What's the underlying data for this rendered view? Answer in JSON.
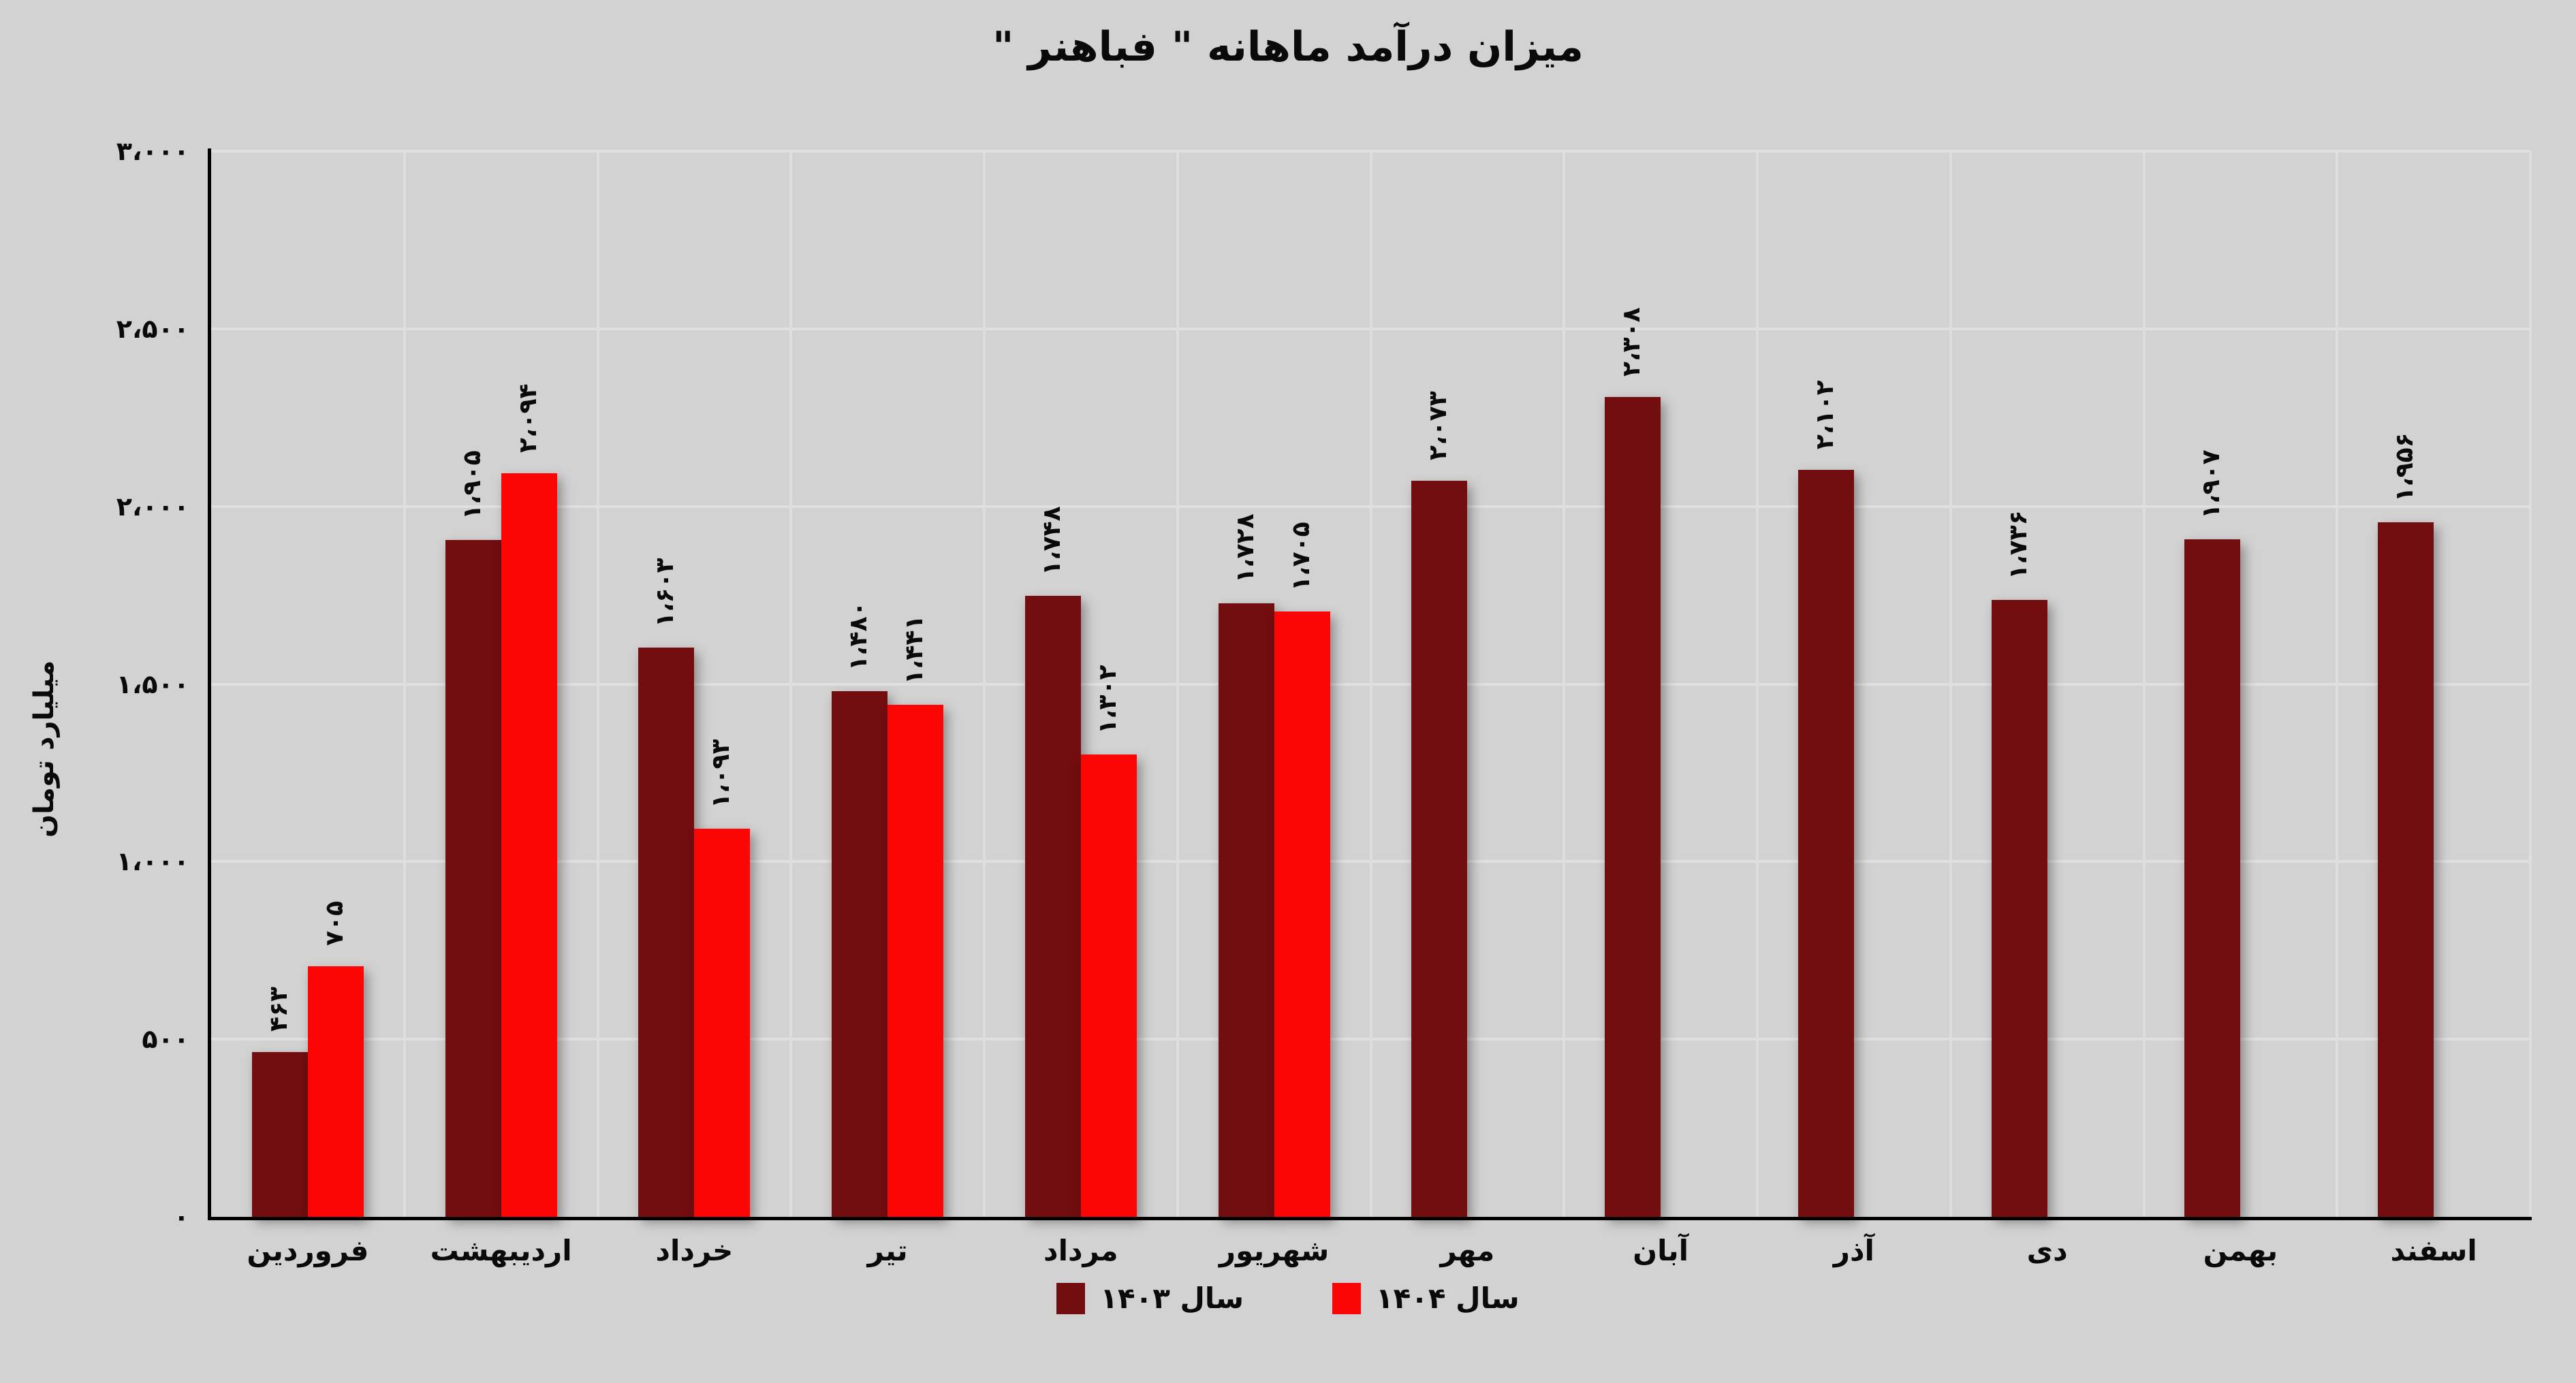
{
  "title": "میزان درآمد ماهانه \" فباهنر \"",
  "colors": {
    "background": "#d2d2d2",
    "gridline": "#e0e0e0",
    "axis": "#000000",
    "text": "#0a0a0a",
    "series_1403": "#720d10",
    "series_1404": "#fb0505"
  },
  "chart_data": {
    "type": "bar",
    "title": "میزان درآمد ماهانه \" فباهنر \"",
    "ylabel": "میلیارد تومان",
    "xlabel": "",
    "ylim": [
      0,
      3000
    ],
    "ytick_step": 500,
    "grid": true,
    "legend_position": "bottom",
    "categories": [
      "فروردین",
      "اردیبهشت",
      "خرداد",
      "تیر",
      "مرداد",
      "شهریور",
      "مهر",
      "آبان",
      "آذر",
      "دی",
      "بهمن",
      "اسفند"
    ],
    "yticks": [
      {
        "value": 0,
        "label": "۰"
      },
      {
        "value": 500,
        "label": "۵۰۰"
      },
      {
        "value": 1000,
        "label": "۱،۰۰۰"
      },
      {
        "value": 1500,
        "label": "۱،۵۰۰"
      },
      {
        "value": 2000,
        "label": "۲،۰۰۰"
      },
      {
        "value": 2500,
        "label": "۲،۵۰۰"
      },
      {
        "value": 3000,
        "label": "۳،۰۰۰"
      }
    ],
    "series": [
      {
        "name": "سال ۱۴۰۳",
        "color": "#720d10",
        "values": [
          463,
          1905,
          1603,
          1480,
          1748,
          1728,
          2073,
          2308,
          2102,
          1736,
          1907,
          1956
        ],
        "labels": [
          "۴۶۳",
          "۱،۹۰۵",
          "۱،۶۰۳",
          "۱،۴۸۰",
          "۱،۷۴۸",
          "۱،۷۲۸",
          "۲،۰۷۳",
          "۲،۳۰۸",
          "۲،۱۰۲",
          "۱،۷۳۶",
          "۱،۹۰۷",
          "۱،۹۵۶"
        ]
      },
      {
        "name": "سال ۱۴۰۴",
        "color": "#fb0505",
        "values": [
          705,
          2094,
          1093,
          1441,
          1302,
          1705,
          null,
          null,
          null,
          null,
          null,
          null
        ],
        "labels": [
          "۷۰۵",
          "۲،۰۹۴",
          "۱،۰۹۳",
          "۱،۴۴۱",
          "۱،۳۰۲",
          "۱،۷۰۵",
          null,
          null,
          null,
          null,
          null,
          null
        ]
      }
    ]
  }
}
